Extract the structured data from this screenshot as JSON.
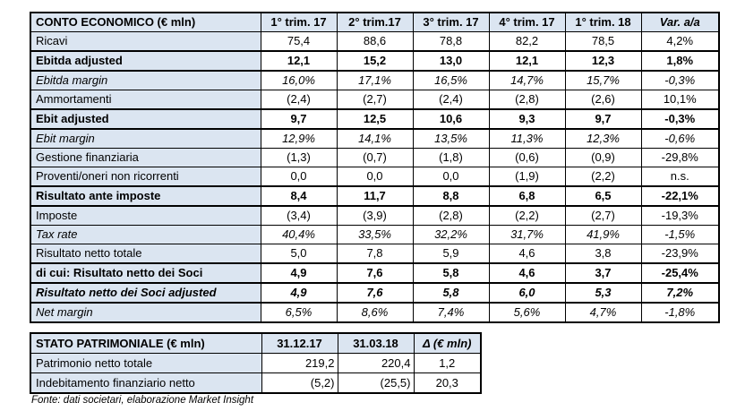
{
  "income_statement": {
    "title": "CONTO ECONOMICO (€ mln)",
    "columns": [
      "1° trim. 17",
      "2° trim.17",
      "3° trim. 17",
      "4° trim. 17",
      "1° trim. 18",
      "Var. a/a"
    ],
    "rows": [
      {
        "label": "Ricavi",
        "style": "normal",
        "values": [
          "75,4",
          "88,6",
          "78,8",
          "82,2",
          "78,5",
          "4,2%"
        ]
      },
      {
        "label": "Ebitda adjusted",
        "style": "bold",
        "values": [
          "12,1",
          "15,2",
          "13,0",
          "12,1",
          "12,3",
          "1,8%"
        ]
      },
      {
        "label": "Ebitda margin",
        "style": "italic",
        "values": [
          "16,0%",
          "17,1%",
          "16,5%",
          "14,7%",
          "15,7%",
          "-0,3%"
        ]
      },
      {
        "label": "Ammortamenti",
        "style": "normal",
        "values": [
          "(2,4)",
          "(2,7)",
          "(2,4)",
          "(2,8)",
          "(2,6)",
          "10,1%"
        ]
      },
      {
        "label": "Ebit adjusted",
        "style": "bold",
        "values": [
          "9,7",
          "12,5",
          "10,6",
          "9,3",
          "9,7",
          "-0,3%"
        ]
      },
      {
        "label": "Ebit margin",
        "style": "italic",
        "values": [
          "12,9%",
          "14,1%",
          "13,5%",
          "11,3%",
          "12,3%",
          "-0,6%"
        ]
      },
      {
        "label": "Gestione finanziaria",
        "style": "normal",
        "values": [
          "(1,3)",
          "(0,7)",
          "(1,8)",
          "(0,6)",
          "(0,9)",
          "-29,8%"
        ]
      },
      {
        "label": "Proventi/oneri non ricorrenti",
        "style": "normal",
        "values": [
          "0,0",
          "0,0",
          "0,0",
          "(1,9)",
          "(2,2)",
          "n.s."
        ]
      },
      {
        "label": "Risultato ante imposte",
        "style": "bold",
        "values": [
          "8,4",
          "11,7",
          "8,8",
          "6,8",
          "6,5",
          "-22,1%"
        ]
      },
      {
        "label": "Imposte",
        "style": "normal",
        "values": [
          "(3,4)",
          "(3,9)",
          "(2,8)",
          "(2,2)",
          "(2,7)",
          "-19,3%"
        ]
      },
      {
        "label": "Tax rate",
        "style": "italic",
        "values": [
          "40,4%",
          "33,5%",
          "32,2%",
          "31,7%",
          "41,9%",
          "-1,5%"
        ]
      },
      {
        "label": "Risultato netto totale",
        "style": "normal",
        "values": [
          "5,0",
          "7,8",
          "5,9",
          "4,6",
          "3,8",
          "-23,9%"
        ]
      },
      {
        "label": "di cui: Risultato netto dei Soci",
        "style": "bold",
        "values": [
          "4,9",
          "7,6",
          "5,8",
          "4,6",
          "3,7",
          "-25,4%"
        ]
      },
      {
        "label": "Risultato netto dei Soci adjusted",
        "style": "bold-italic",
        "values": [
          "4,9",
          "7,6",
          "5,8",
          "6,0",
          "5,3",
          "7,2%"
        ]
      },
      {
        "label": "Net margin",
        "style": "italic",
        "values": [
          "6,5%",
          "8,6%",
          "7,4%",
          "5,6%",
          "4,7%",
          "-1,8%"
        ]
      }
    ]
  },
  "balance_sheet": {
    "title": "STATO PATRIMONIALE (€ mln)",
    "columns": [
      "31.12.17",
      "31.03.18",
      "Δ (€ mln)"
    ],
    "rows": [
      {
        "label": "Patrimonio netto totale",
        "style": "normal",
        "values": [
          "219,2",
          "220,4",
          "1,2"
        ]
      },
      {
        "label": "Indebitamento finanziario netto",
        "style": "normal",
        "values": [
          "(5,2)",
          "(25,5)",
          "20,3"
        ]
      }
    ]
  },
  "footer": {
    "source_note": "Fonte: dati societari, elaborazione Market Insight"
  },
  "colors": {
    "header_fill": "#DBE5F1",
    "border": "#000000",
    "text": "#000000",
    "background": "#FFFFFF"
  }
}
